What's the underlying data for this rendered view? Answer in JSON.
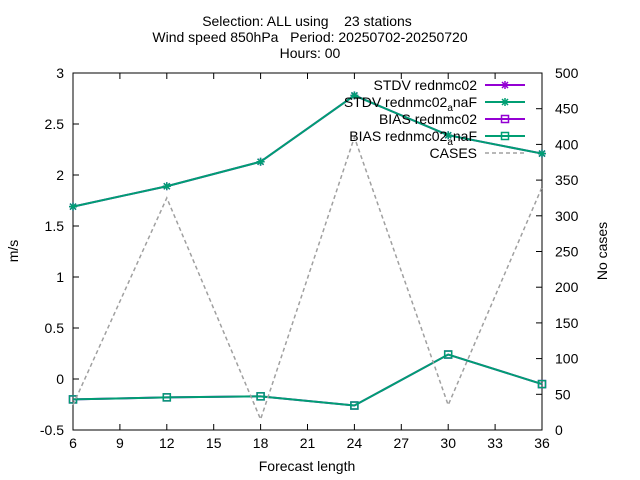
{
  "header": {
    "line1": "Selection: ALL using    23 stations",
    "line2": "Wind speed 850hPa   Period: 20250702-20250720",
    "line3": "Hours: 00"
  },
  "chart_data": {
    "type": "line",
    "xlabel": "Forecast length",
    "ylabel": "m/s",
    "y2label": "No cases",
    "xlim": [
      6,
      36
    ],
    "ylim": [
      -0.5,
      3
    ],
    "y2lim": [
      0,
      500
    ],
    "xticks": [
      6,
      9,
      12,
      15,
      18,
      21,
      24,
      27,
      30,
      33,
      36
    ],
    "yticks": [
      "-0.5",
      "0",
      "0.5",
      "1",
      "1.5",
      "2",
      "2.5",
      "3"
    ],
    "y2ticks": [
      0,
      50,
      100,
      150,
      200,
      250,
      300,
      350,
      400,
      450,
      500
    ],
    "grid": false,
    "legend_position": "top-right",
    "x": [
      6,
      12,
      18,
      24,
      30,
      36
    ],
    "series": [
      {
        "name": "STDV rednmc02",
        "axis": "y",
        "color": "#9400d3",
        "marker": "star",
        "values": [
          1.69,
          1.89,
          2.13,
          2.78,
          2.39,
          2.21
        ]
      },
      {
        "name": "STDV rednmc02_anaF",
        "name_main": "STDV rednmc02",
        "name_sub": "a",
        "name_tail": "naF",
        "axis": "y",
        "color": "#009e73",
        "marker": "star",
        "values": [
          1.69,
          1.89,
          2.13,
          2.78,
          2.39,
          2.21
        ]
      },
      {
        "name": "BIAS rednmc02",
        "axis": "y",
        "color": "#9400d3",
        "marker": "square",
        "values": [
          -0.2,
          -0.18,
          -0.17,
          -0.26,
          0.24,
          -0.05
        ]
      },
      {
        "name": "BIAS rednmc02_anaF",
        "name_main": "BIAS rednmc02",
        "name_sub": "a",
        "name_tail": "naF",
        "axis": "y",
        "color": "#009e73",
        "marker": "square",
        "values": [
          -0.2,
          -0.18,
          -0.17,
          -0.26,
          0.24,
          -0.05
        ]
      },
      {
        "name": "CASES",
        "axis": "y2",
        "color": "#a0a0a0",
        "marker": "none",
        "dashed": true,
        "values": [
          35,
          325,
          15,
          410,
          35,
          340
        ]
      }
    ]
  }
}
